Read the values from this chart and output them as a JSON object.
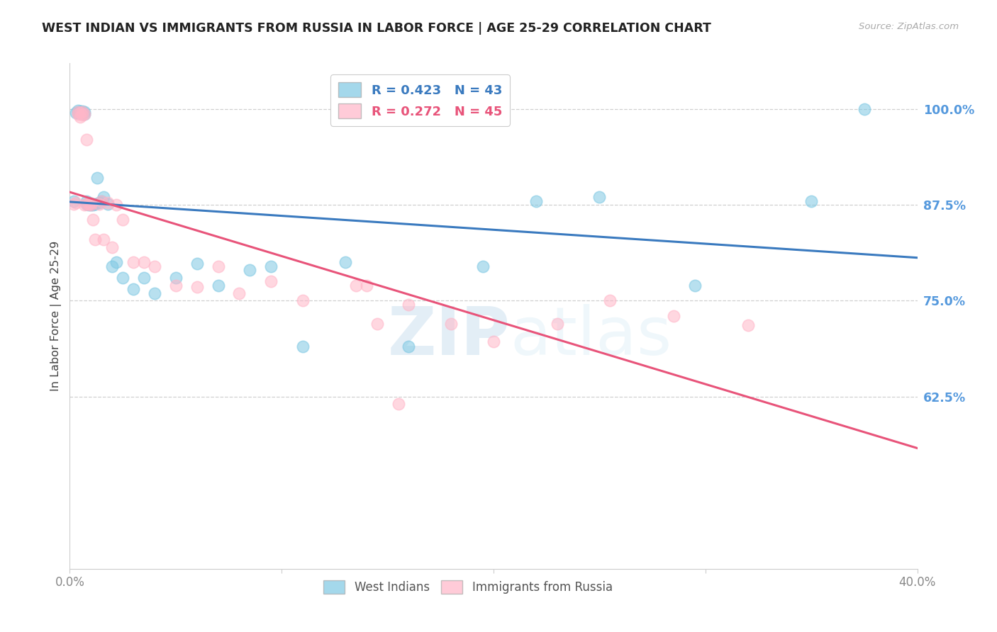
{
  "title": "WEST INDIAN VS IMMIGRANTS FROM RUSSIA IN LABOR FORCE | AGE 25-29 CORRELATION CHART",
  "source": "Source: ZipAtlas.com",
  "ylabel": "In Labor Force | Age 25-29",
  "xlim": [
    0.0,
    0.4
  ],
  "ylim": [
    0.4,
    1.06
  ],
  "yticks": [
    0.625,
    0.75,
    0.875,
    1.0
  ],
  "ytick_labels": [
    "62.5%",
    "75.0%",
    "87.5%",
    "100.0%"
  ],
  "xticks": [
    0.0,
    0.1,
    0.2,
    0.3,
    0.4
  ],
  "xtick_labels": [
    "0.0%",
    "",
    "",
    "",
    "40.0%"
  ],
  "blue_R": 0.423,
  "blue_N": 43,
  "pink_R": 0.272,
  "pink_N": 45,
  "blue_color": "#7ec8e3",
  "pink_color": "#ffb6c8",
  "blue_line_color": "#3a7abf",
  "pink_line_color": "#e8547a",
  "watermark_zip": "ZIP",
  "watermark_atlas": "atlas",
  "background_color": "#ffffff",
  "grid_color": "#d0d0d0",
  "blue_scatter_x": [
    0.002,
    0.003,
    0.004,
    0.004,
    0.005,
    0.005,
    0.006,
    0.006,
    0.007,
    0.007,
    0.008,
    0.008,
    0.009,
    0.009,
    0.01,
    0.01,
    0.011,
    0.012,
    0.013,
    0.014,
    0.015,
    0.016,
    0.018,
    0.02,
    0.022,
    0.025,
    0.03,
    0.035,
    0.04,
    0.05,
    0.06,
    0.07,
    0.085,
    0.095,
    0.11,
    0.13,
    0.16,
    0.195,
    0.22,
    0.25,
    0.295,
    0.35,
    0.375
  ],
  "blue_scatter_y": [
    0.88,
    0.995,
    0.995,
    0.998,
    0.995,
    0.997,
    0.995,
    0.997,
    0.996,
    0.994,
    0.88,
    0.876,
    0.876,
    0.875,
    0.875,
    0.877,
    0.875,
    0.876,
    0.91,
    0.878,
    0.88,
    0.885,
    0.876,
    0.795,
    0.8,
    0.78,
    0.765,
    0.78,
    0.76,
    0.78,
    0.798,
    0.77,
    0.79,
    0.795,
    0.69,
    0.8,
    0.69,
    0.795,
    0.88,
    0.885,
    0.77,
    0.88,
    1.0
  ],
  "pink_scatter_x": [
    0.002,
    0.003,
    0.004,
    0.004,
    0.005,
    0.005,
    0.006,
    0.006,
    0.007,
    0.007,
    0.008,
    0.008,
    0.009,
    0.009,
    0.01,
    0.01,
    0.011,
    0.012,
    0.014,
    0.015,
    0.016,
    0.018,
    0.02,
    0.022,
    0.025,
    0.03,
    0.035,
    0.04,
    0.05,
    0.06,
    0.07,
    0.08,
    0.095,
    0.11,
    0.135,
    0.14,
    0.145,
    0.16,
    0.18,
    0.2,
    0.23,
    0.255,
    0.285,
    0.32,
    0.155
  ],
  "pink_scatter_y": [
    0.876,
    0.878,
    0.996,
    0.994,
    0.995,
    0.99,
    0.996,
    0.993,
    0.994,
    0.875,
    0.96,
    0.876,
    0.876,
    0.876,
    0.875,
    0.877,
    0.856,
    0.83,
    0.876,
    0.88,
    0.83,
    0.878,
    0.82,
    0.875,
    0.856,
    0.8,
    0.8,
    0.795,
    0.77,
    0.768,
    0.795,
    0.76,
    0.775,
    0.75,
    0.77,
    0.77,
    0.72,
    0.745,
    0.72,
    0.697,
    0.72,
    0.75,
    0.73,
    0.718,
    0.615
  ]
}
